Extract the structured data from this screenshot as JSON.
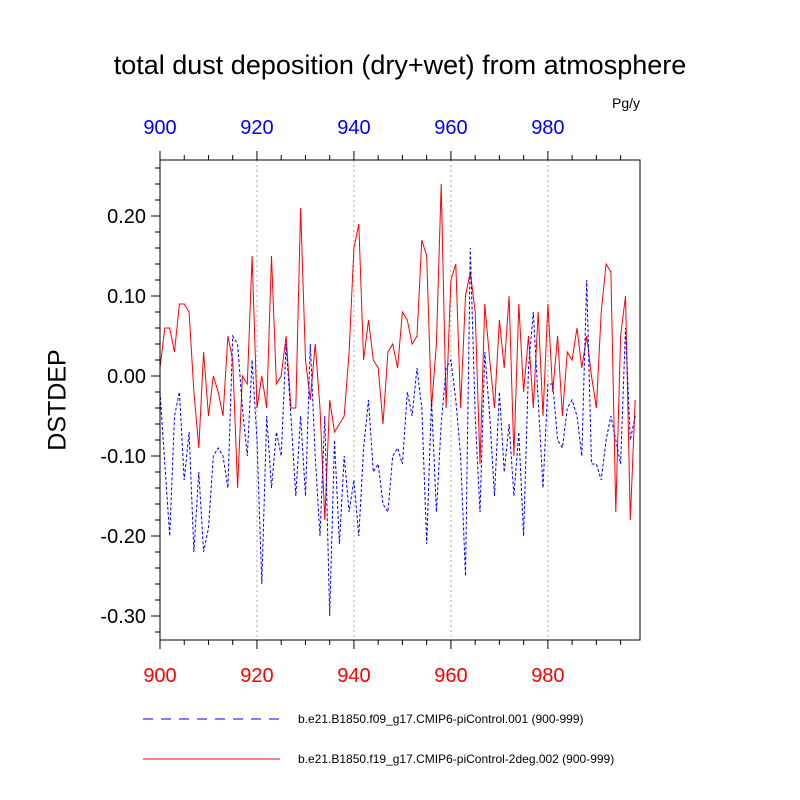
{
  "title": "total dust deposition (dry+wet) from atmosphere",
  "units": "Pg/y",
  "colors": {
    "blue": "#0000ff",
    "red": "#ff0000",
    "axis": "#000000",
    "grid": "#aaaaaa"
  },
  "chart_data": {
    "type": "line",
    "title": "total dust deposition (dry+wet) from atmosphere",
    "ylabel": "DSTDEP",
    "xlabel": "",
    "units": "Pg/y",
    "xlim": [
      900,
      999
    ],
    "ylim": [
      -0.33,
      0.27
    ],
    "x_ticks": [
      900,
      920,
      940,
      960,
      980
    ],
    "x_tick_labels": [
      "900",
      "920",
      "940",
      "960",
      "980"
    ],
    "top_x_tick_labels": [
      "900",
      "920",
      "940",
      "960",
      "980"
    ],
    "y_ticks": [
      0.2,
      0.1,
      0.0,
      -0.1,
      -0.2,
      -0.3
    ],
    "y_tick_labels": [
      "0.20",
      "0.10",
      "0.00",
      "-0.10",
      "-0.20",
      "-0.30"
    ],
    "grid": "vertical dotted at x ticks",
    "legend_placement": "bottom",
    "series": [
      {
        "name": "b.e21.B1850.f09_g17.CMIP6-piControl.001 (900-999)",
        "axis": "top",
        "color": "#0000ff",
        "style": "dashed",
        "x_start": 900,
        "values": [
          -0.02,
          -0.11,
          -0.2,
          -0.05,
          -0.02,
          -0.13,
          -0.07,
          -0.22,
          -0.12,
          -0.22,
          -0.19,
          -0.1,
          -0.09,
          -0.1,
          -0.14,
          0.05,
          0.04,
          -0.04,
          -0.1,
          0.02,
          -0.08,
          -0.26,
          -0.05,
          -0.14,
          -0.07,
          -0.1,
          0.04,
          -0.05,
          -0.15,
          -0.05,
          -0.15,
          0.04,
          -0.1,
          -0.2,
          -0.05,
          -0.3,
          -0.08,
          -0.21,
          -0.1,
          -0.17,
          -0.13,
          -0.2,
          -0.09,
          -0.03,
          -0.12,
          -0.11,
          -0.16,
          -0.17,
          -0.1,
          -0.09,
          -0.11,
          -0.02,
          -0.05,
          0.01,
          -0.04,
          -0.21,
          -0.03,
          -0.17,
          -0.06,
          0.01,
          0.02,
          -0.03,
          -0.1,
          -0.25,
          0.16,
          -0.05,
          -0.17,
          0.03,
          -0.05,
          -0.15,
          -0.02,
          -0.12,
          -0.06,
          -0.15,
          -0.07,
          -0.2,
          0.01,
          0.08,
          -0.03,
          -0.14,
          -0.01,
          -0.01,
          -0.08,
          -0.09,
          -0.04,
          -0.03,
          -0.05,
          -0.1,
          0.12,
          -0.11,
          -0.11,
          -0.13,
          -0.08,
          -0.05,
          -0.08,
          -0.11,
          0.06,
          -0.08,
          -0.05
        ]
      },
      {
        "name": "b.e21.B1850.f19_g17.CMIP6-piControl-2deg.002 (900-999)",
        "axis": "bottom",
        "color": "#ff0000",
        "style": "solid",
        "x_start": 900,
        "values": [
          0.01,
          0.06,
          0.06,
          0.03,
          0.09,
          0.09,
          0.08,
          -0.02,
          -0.09,
          0.03,
          -0.05,
          0.0,
          -0.02,
          -0.05,
          0.05,
          0.02,
          -0.14,
          0.0,
          -0.01,
          0.15,
          -0.04,
          0.0,
          -0.04,
          0.15,
          -0.01,
          0.0,
          0.05,
          -0.04,
          -0.04,
          0.21,
          0.02,
          -0.03,
          0.04,
          -0.04,
          -0.18,
          -0.03,
          -0.07,
          -0.06,
          -0.05,
          0.03,
          0.16,
          0.19,
          0.02,
          0.07,
          0.02,
          0.01,
          -0.06,
          0.03,
          0.04,
          0.01,
          0.08,
          0.07,
          0.04,
          0.05,
          0.17,
          0.15,
          -0.04,
          0.04,
          0.24,
          -0.04,
          0.12,
          0.14,
          -0.04,
          0.1,
          0.13,
          0.08,
          -0.11,
          0.09,
          0.02,
          -0.04,
          0.07,
          0.01,
          0.1,
          -0.1,
          0.09,
          -0.02,
          0.05,
          -0.04,
          0.08,
          -0.05,
          0.09,
          -0.02,
          0.05,
          -0.05,
          0.03,
          0.02,
          0.06,
          0.01,
          0.05,
          0.0,
          -0.04,
          0.08,
          0.14,
          0.13,
          -0.17,
          0.05,
          0.1,
          -0.18,
          -0.03
        ]
      }
    ],
    "legend": [
      {
        "label": "b.e21.B1850.f09_g17.CMIP6-piControl.001 (900-999)",
        "color": "#0000ff",
        "style": "dashed"
      },
      {
        "label": "b.e21.B1850.f19_g17.CMIP6-piControl-2deg.002 (900-999)",
        "color": "#ff0000",
        "style": "solid"
      }
    ]
  }
}
